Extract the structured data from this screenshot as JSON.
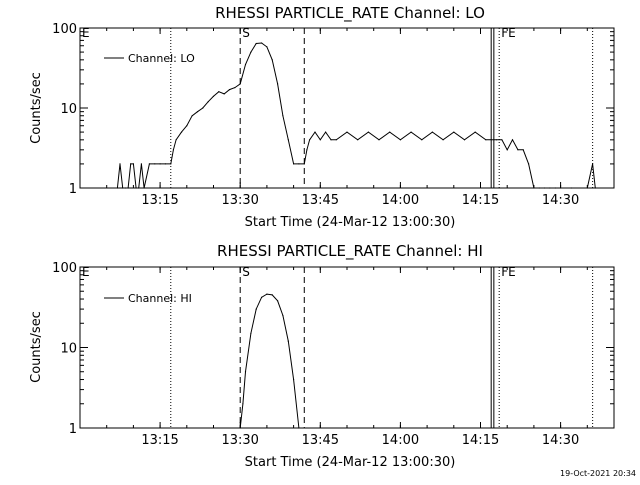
{
  "timestamp": "19-Oct-2021 20:34",
  "colors": {
    "line": "#000000",
    "background": "#ffffff"
  },
  "chart_data": [
    {
      "type": "line",
      "title": "RHESSI PARTICLE_RATE Channel: LO",
      "xlabel": "Start Time (24-Mar-12 13:00:30)",
      "ylabel": "Counts/sec",
      "yscale": "log",
      "ylim": [
        1,
        100
      ],
      "yticks": [
        {
          "value": 1,
          "label": "1"
        },
        {
          "value": 10,
          "label": "10"
        },
        {
          "value": 100,
          "label": "100"
        }
      ],
      "xlim": [
        "13:00",
        "14:40"
      ],
      "xticks": [
        "13:15",
        "13:30",
        "13:45",
        "14:00",
        "14:15",
        "14:30"
      ],
      "legend": {
        "position": "top-left",
        "entries": [
          "Channel: LO"
        ]
      },
      "markers": [
        {
          "label": "E",
          "time": "13:00",
          "style": "none"
        },
        {
          "label": "",
          "time": "13:17",
          "style": "dotted"
        },
        {
          "label": "S",
          "time": "13:30",
          "style": "dashed"
        },
        {
          "label": "",
          "time": "13:42",
          "style": "dashed"
        },
        {
          "label": "",
          "time": "14:17",
          "style": "solid"
        },
        {
          "label": "",
          "time": "14:17.5",
          "style": "solid"
        },
        {
          "label": "FE",
          "time": "14:18.5",
          "style": "dotted"
        },
        {
          "label": "",
          "time": "14:36",
          "style": "dotted"
        }
      ],
      "series": [
        {
          "name": "Channel: LO",
          "x": [
            "13:07",
            "13:07.5",
            "13:08",
            "13:08.5",
            "13:09",
            "13:09.5",
            "13:10",
            "13:10.5",
            "13:11",
            "13:11.5",
            "13:12",
            "13:13",
            "13:14",
            "13:15",
            "13:16",
            "13:17",
            "13:17.5",
            "13:18",
            "13:19",
            "13:20",
            "13:21",
            "13:22",
            "13:23",
            "13:24",
            "13:25",
            "13:26",
            "13:27",
            "13:28",
            "13:29",
            "13:30",
            "13:31",
            "13:32",
            "13:33",
            "13:34",
            "13:35",
            "13:36",
            "13:37",
            "13:38",
            "13:39",
            "13:40",
            "13:41",
            "13:42",
            "13:42.5",
            "13:43",
            "13:44",
            "13:45",
            "13:46",
            "13:47",
            "13:48",
            "13:50",
            "13:52",
            "13:54",
            "13:56",
            "13:58",
            "14:00",
            "14:02",
            "14:04",
            "14:06",
            "14:08",
            "14:10",
            "14:12",
            "14:14",
            "14:16",
            "14:17",
            "14:18",
            "14:19",
            "14:20",
            "14:21",
            "14:22",
            "14:23",
            "14:24",
            "14:25",
            "14:26",
            "14:27",
            "14:28",
            "14:29",
            "14:30",
            "14:32",
            "14:35",
            "14:36",
            "14:36.5"
          ],
          "values": [
            1,
            2,
            1,
            1,
            1,
            2,
            2,
            1,
            1,
            2,
            1,
            2,
            2,
            2,
            2,
            2,
            3,
            4,
            5,
            6,
            8,
            9,
            10,
            12,
            14,
            16,
            15,
            17,
            18,
            20,
            35,
            50,
            64,
            65,
            58,
            40,
            20,
            8,
            4,
            2,
            2,
            2,
            3,
            4,
            5,
            4,
            5,
            4,
            4,
            5,
            4,
            5,
            4,
            5,
            4,
            5,
            4,
            5,
            4,
            5,
            4,
            5,
            4,
            4,
            4,
            4,
            3,
            4,
            3,
            3,
            2,
            1,
            1,
            1,
            1,
            1,
            1,
            1,
            1,
            2,
            1
          ]
        }
      ]
    },
    {
      "type": "line",
      "title": "RHESSI PARTICLE_RATE Channel: HI",
      "xlabel": "Start Time (24-Mar-12 13:00:30)",
      "ylabel": "Counts/sec",
      "yscale": "log",
      "ylim": [
        1,
        100
      ],
      "yticks": [
        {
          "value": 1,
          "label": "1"
        },
        {
          "value": 10,
          "label": "10"
        },
        {
          "value": 100,
          "label": "100"
        }
      ],
      "xlim": [
        "13:00",
        "14:40"
      ],
      "xticks": [
        "13:15",
        "13:30",
        "13:45",
        "14:00",
        "14:15",
        "14:30"
      ],
      "legend": {
        "position": "top-left",
        "entries": [
          "Channel: HI"
        ]
      },
      "markers": [
        {
          "label": "E",
          "time": "13:00",
          "style": "none"
        },
        {
          "label": "",
          "time": "13:17",
          "style": "dotted"
        },
        {
          "label": "S",
          "time": "13:30",
          "style": "dashed"
        },
        {
          "label": "",
          "time": "13:42",
          "style": "dashed"
        },
        {
          "label": "",
          "time": "14:17",
          "style": "solid"
        },
        {
          "label": "",
          "time": "14:17.5",
          "style": "solid"
        },
        {
          "label": "FE",
          "time": "14:18.5",
          "style": "dotted"
        },
        {
          "label": "",
          "time": "14:36",
          "style": "dotted"
        }
      ],
      "series": [
        {
          "name": "Channel: HI",
          "x": [
            "13:30",
            "13:30.5",
            "13:31",
            "13:32",
            "13:33",
            "13:34",
            "13:35",
            "13:36",
            "13:37",
            "13:38",
            "13:39",
            "13:40",
            "13:41"
          ],
          "values": [
            1,
            2,
            5,
            15,
            30,
            42,
            46,
            45,
            38,
            25,
            12,
            4,
            1
          ]
        }
      ]
    }
  ]
}
